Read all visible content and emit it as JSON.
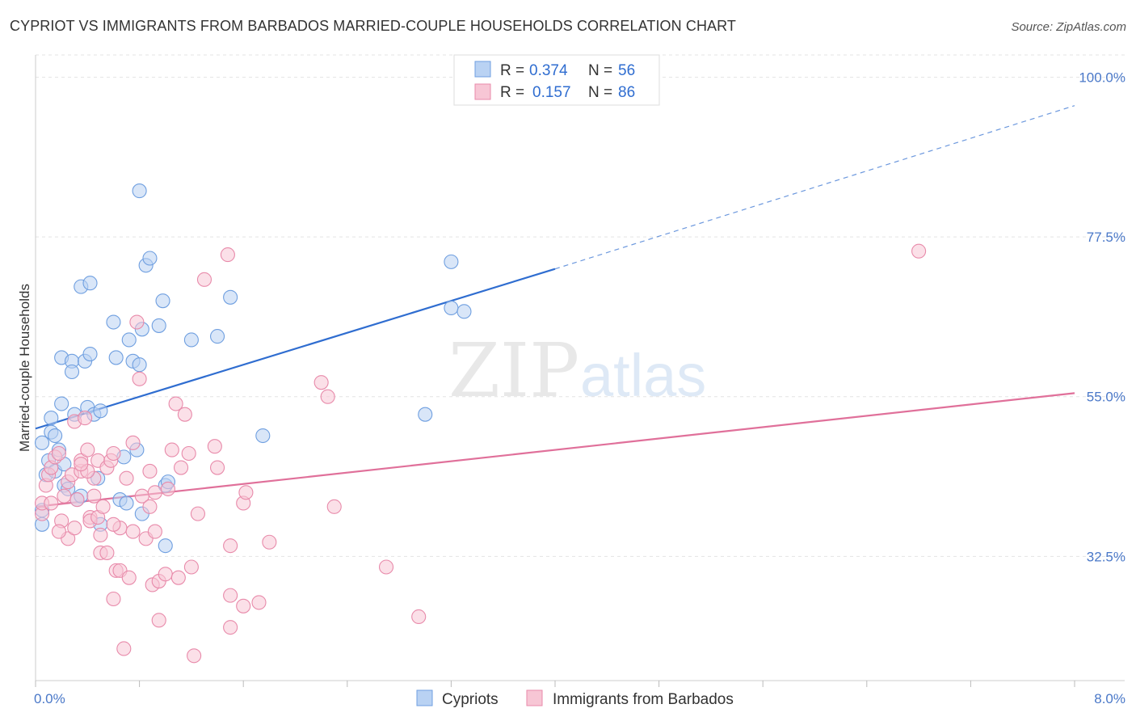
{
  "title": "CYPRIOT VS IMMIGRANTS FROM BARBADOS MARRIED-COUPLE HOUSEHOLDS CORRELATION CHART",
  "source": "Source: ZipAtlas.com",
  "watermark": {
    "zip": "ZIP",
    "atlas": "atlas"
  },
  "chart_data": {
    "type": "scatter",
    "ylabel": "Married-couple Households",
    "xlim": [
      0.0,
      8.0
    ],
    "ylim": [
      15.0,
      102.0
    ],
    "x_tick_labels": [
      "0.0%",
      "8.0%"
    ],
    "y_ticks": [
      32.5,
      55.0,
      77.5,
      100.0
    ],
    "y_tick_labels": [
      "32.5%",
      "55.0%",
      "77.5%",
      "100.0%"
    ],
    "legend": {
      "rows": [
        {
          "r_label": "R =",
          "r_value": "0.374",
          "n_label": "N =",
          "n_value": "56"
        },
        {
          "r_label": "R =",
          "r_value": "0.157",
          "n_label": "N =",
          "n_value": "86"
        }
      ]
    },
    "series": [
      {
        "name": "Cypriots",
        "color": "#6f9fe0",
        "fill": "#b9d2f3",
        "line_color": "#2f6dd0",
        "trend": {
          "x0": 0.0,
          "y0": 50.5,
          "x1": 4.0,
          "y1": 73.0,
          "x_dash_end": 8.0,
          "y_dash_end": 96.0
        },
        "points": [
          [
            0.05,
            48.5
          ],
          [
            0.05,
            37.0
          ],
          [
            0.05,
            39.0
          ],
          [
            0.08,
            44.0
          ],
          [
            0.1,
            46.0
          ],
          [
            0.12,
            50.0
          ],
          [
            0.12,
            52.0
          ],
          [
            0.15,
            49.5
          ],
          [
            0.15,
            44.5
          ],
          [
            0.18,
            47.5
          ],
          [
            0.2,
            60.5
          ],
          [
            0.2,
            54.0
          ],
          [
            0.22,
            45.5
          ],
          [
            0.22,
            42.5
          ],
          [
            0.25,
            42.0
          ],
          [
            0.28,
            60.0
          ],
          [
            0.28,
            58.5
          ],
          [
            0.3,
            52.5
          ],
          [
            0.32,
            40.5
          ],
          [
            0.35,
            70.5
          ],
          [
            0.35,
            41.0
          ],
          [
            0.38,
            60.0
          ],
          [
            0.4,
            53.5
          ],
          [
            0.42,
            71.0
          ],
          [
            0.42,
            61.0
          ],
          [
            0.45,
            52.5
          ],
          [
            0.48,
            43.5
          ],
          [
            0.5,
            37.0
          ],
          [
            0.6,
            65.5
          ],
          [
            0.62,
            60.5
          ],
          [
            0.65,
            40.5
          ],
          [
            0.68,
            46.5
          ],
          [
            0.7,
            40.0
          ],
          [
            0.72,
            63.0
          ],
          [
            0.75,
            60.0
          ],
          [
            0.78,
            47.5
          ],
          [
            0.8,
            59.5
          ],
          [
            0.8,
            84.0
          ],
          [
            0.82,
            64.5
          ],
          [
            0.82,
            38.5
          ],
          [
            0.85,
            73.5
          ],
          [
            0.88,
            74.5
          ],
          [
            0.95,
            65.0
          ],
          [
            0.98,
            68.5
          ],
          [
            1.0,
            42.5
          ],
          [
            1.0,
            34.0
          ],
          [
            1.02,
            43.0
          ],
          [
            1.2,
            63.0
          ],
          [
            1.4,
            63.5
          ],
          [
            1.5,
            69.0
          ],
          [
            1.75,
            49.5
          ],
          [
            3.0,
            52.5
          ],
          [
            3.2,
            67.5
          ],
          [
            3.3,
            67.0
          ],
          [
            3.2,
            74.0
          ],
          [
            0.5,
            53.0
          ]
        ]
      },
      {
        "name": "Immigrants from Barbados",
        "color": "#e88aaa",
        "fill": "#f7c6d5",
        "line_color": "#e0709a",
        "trend": {
          "x0": 0.0,
          "y0": 39.5,
          "x1": 8.0,
          "y1": 55.5
        },
        "points": [
          [
            0.05,
            38.5
          ],
          [
            0.05,
            40.0
          ],
          [
            0.08,
            42.5
          ],
          [
            0.1,
            44.0
          ],
          [
            0.12,
            45.0
          ],
          [
            0.12,
            40.0
          ],
          [
            0.15,
            46.5
          ],
          [
            0.18,
            47.0
          ],
          [
            0.2,
            37.5
          ],
          [
            0.22,
            41.0
          ],
          [
            0.25,
            43.0
          ],
          [
            0.25,
            35.0
          ],
          [
            0.28,
            44.0
          ],
          [
            0.3,
            36.5
          ],
          [
            0.3,
            51.5
          ],
          [
            0.32,
            40.5
          ],
          [
            0.35,
            44.5
          ],
          [
            0.35,
            46.0
          ],
          [
            0.38,
            52.0
          ],
          [
            0.4,
            47.5
          ],
          [
            0.42,
            38.0
          ],
          [
            0.42,
            37.5
          ],
          [
            0.45,
            41.0
          ],
          [
            0.45,
            43.5
          ],
          [
            0.48,
            38.0
          ],
          [
            0.48,
            46.0
          ],
          [
            0.5,
            35.5
          ],
          [
            0.5,
            33.0
          ],
          [
            0.52,
            39.5
          ],
          [
            0.55,
            33.0
          ],
          [
            0.55,
            45.0
          ],
          [
            0.58,
            46.0
          ],
          [
            0.6,
            47.0
          ],
          [
            0.62,
            30.5
          ],
          [
            0.65,
            36.5
          ],
          [
            0.65,
            30.5
          ],
          [
            0.68,
            19.5
          ],
          [
            0.7,
            43.5
          ],
          [
            0.72,
            29.5
          ],
          [
            0.75,
            48.5
          ],
          [
            0.75,
            36.0
          ],
          [
            0.78,
            65.5
          ],
          [
            0.8,
            57.5
          ],
          [
            0.82,
            41.0
          ],
          [
            0.85,
            35.0
          ],
          [
            0.88,
            44.5
          ],
          [
            0.88,
            39.5
          ],
          [
            0.9,
            28.5
          ],
          [
            0.92,
            36.0
          ],
          [
            0.92,
            41.5
          ],
          [
            0.95,
            29.0
          ],
          [
            0.95,
            23.5
          ],
          [
            1.0,
            30.0
          ],
          [
            1.02,
            42.0
          ],
          [
            1.05,
            47.5
          ],
          [
            1.08,
            54.0
          ],
          [
            1.1,
            29.5
          ],
          [
            1.12,
            45.0
          ],
          [
            1.15,
            52.5
          ],
          [
            1.18,
            47.0
          ],
          [
            1.2,
            31.0
          ],
          [
            1.22,
            18.5
          ],
          [
            1.25,
            38.5
          ],
          [
            1.3,
            71.5
          ],
          [
            1.38,
            48.0
          ],
          [
            1.4,
            45.0
          ],
          [
            1.48,
            75.0
          ],
          [
            1.5,
            27.0
          ],
          [
            1.5,
            34.0
          ],
          [
            1.6,
            25.5
          ],
          [
            1.6,
            40.0
          ],
          [
            1.62,
            41.5
          ],
          [
            1.72,
            26.0
          ],
          [
            1.8,
            34.5
          ],
          [
            2.2,
            57.0
          ],
          [
            2.25,
            55.0
          ],
          [
            2.3,
            39.5
          ],
          [
            2.7,
            31.0
          ],
          [
            2.95,
            24.0
          ],
          [
            6.8,
            75.5
          ],
          [
            0.18,
            36.0
          ],
          [
            0.4,
            44.5
          ],
          [
            0.6,
            26.5
          ],
          [
            1.5,
            22.5
          ],
          [
            0.35,
            45.5
          ],
          [
            0.6,
            37.0
          ]
        ]
      }
    ]
  }
}
